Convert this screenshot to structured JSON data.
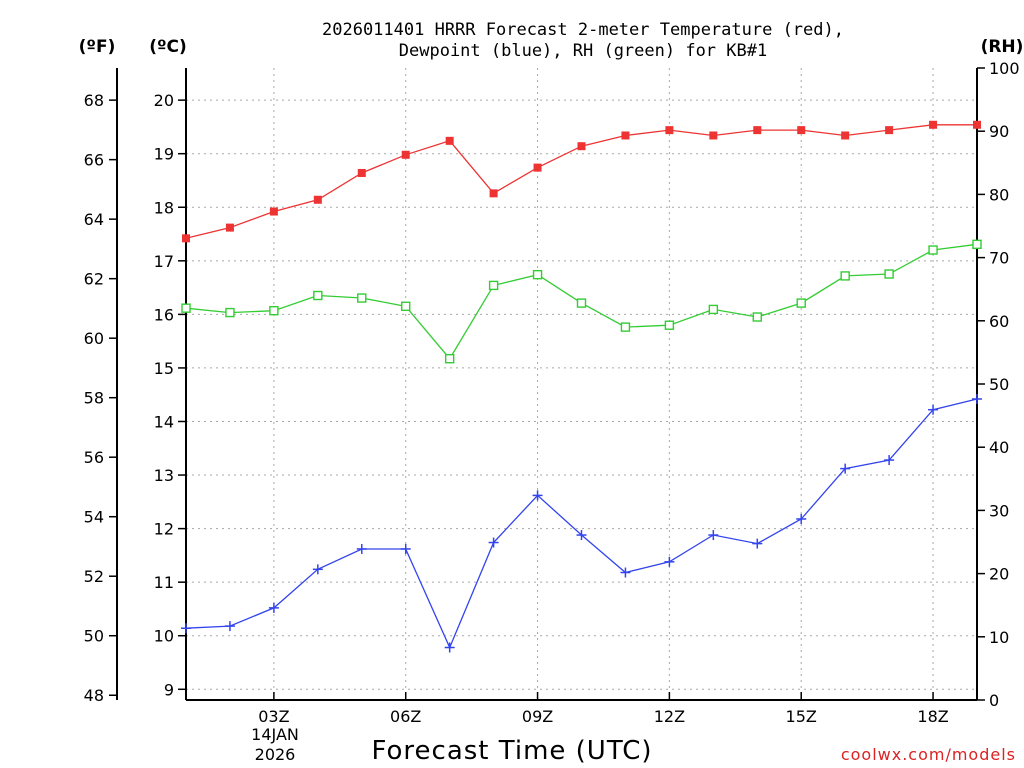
{
  "chart_data": {
    "type": "line",
    "title": [
      "2026011401 HRRR Forecast 2-meter Temperature (red),",
      "Dewpoint (blue), RH (green) for KB#1"
    ],
    "xlabel": "Forecast Time (UTC)",
    "date_label": [
      "14JAN",
      "2026"
    ],
    "units": {
      "fahrenheit": "(ºF)",
      "celsius": "(ºC)",
      "rh": "(RH)"
    },
    "x_hours": [
      1,
      2,
      3,
      4,
      5,
      6,
      7,
      8,
      9,
      10,
      11,
      12,
      13,
      14,
      15,
      16,
      17,
      18,
      19
    ],
    "xlim": [
      1,
      19
    ],
    "x_ticks": [
      {
        "hour": 3,
        "label": "03Z"
      },
      {
        "hour": 6,
        "label": "06Z"
      },
      {
        "hour": 9,
        "label": "09Z"
      },
      {
        "hour": 12,
        "label": "12Z"
      },
      {
        "hour": 15,
        "label": "15Z"
      },
      {
        "hour": 18,
        "label": "18Z"
      }
    ],
    "celsius_axis": {
      "ylim": [
        8.8,
        20.6
      ],
      "ticks": [
        9,
        10,
        11,
        12,
        13,
        14,
        15,
        16,
        17,
        18,
        19,
        20
      ]
    },
    "fahrenheit_axis": {
      "ticks": [
        48,
        50,
        52,
        54,
        56,
        58,
        60,
        62,
        64,
        66,
        68
      ]
    },
    "rh_axis": {
      "ylim": [
        0,
        100
      ],
      "ticks": [
        0,
        10,
        20,
        30,
        40,
        50,
        60,
        70,
        80,
        90,
        100
      ]
    },
    "series": [
      {
        "name": "Temperature",
        "color": "#ee3333",
        "marker": "filled-square",
        "axis": "celsius",
        "values": [
          17.42,
          17.62,
          17.92,
          18.14,
          18.64,
          18.98,
          19.24,
          18.26,
          18.74,
          19.14,
          19.34,
          19.44,
          19.34,
          19.44,
          19.44,
          19.34,
          19.44,
          19.54,
          19.54
        ]
      },
      {
        "name": "Dewpoint",
        "color": "#3344ee",
        "marker": "plus",
        "axis": "celsius",
        "values": [
          10.14,
          10.18,
          10.52,
          11.24,
          11.62,
          11.62,
          9.78,
          11.74,
          12.62,
          11.88,
          11.18,
          11.38,
          11.88,
          11.72,
          12.18,
          13.12,
          13.28,
          14.22,
          14.42
        ]
      },
      {
        "name": "RH",
        "color": "#33cc33",
        "marker": "open-square",
        "axis": "rh",
        "values": [
          62.0,
          61.3,
          61.6,
          64.0,
          63.6,
          62.3,
          54.0,
          65.6,
          67.3,
          62.8,
          59.0,
          59.3,
          61.8,
          60.6,
          62.8,
          67.1,
          67.4,
          71.2,
          72.1
        ]
      }
    ],
    "grid": true
  },
  "credit": "coolwx.com/models",
  "colors": {
    "credit": "#dd2222",
    "axis": "#000000",
    "grid": "#a8a8a8"
  }
}
